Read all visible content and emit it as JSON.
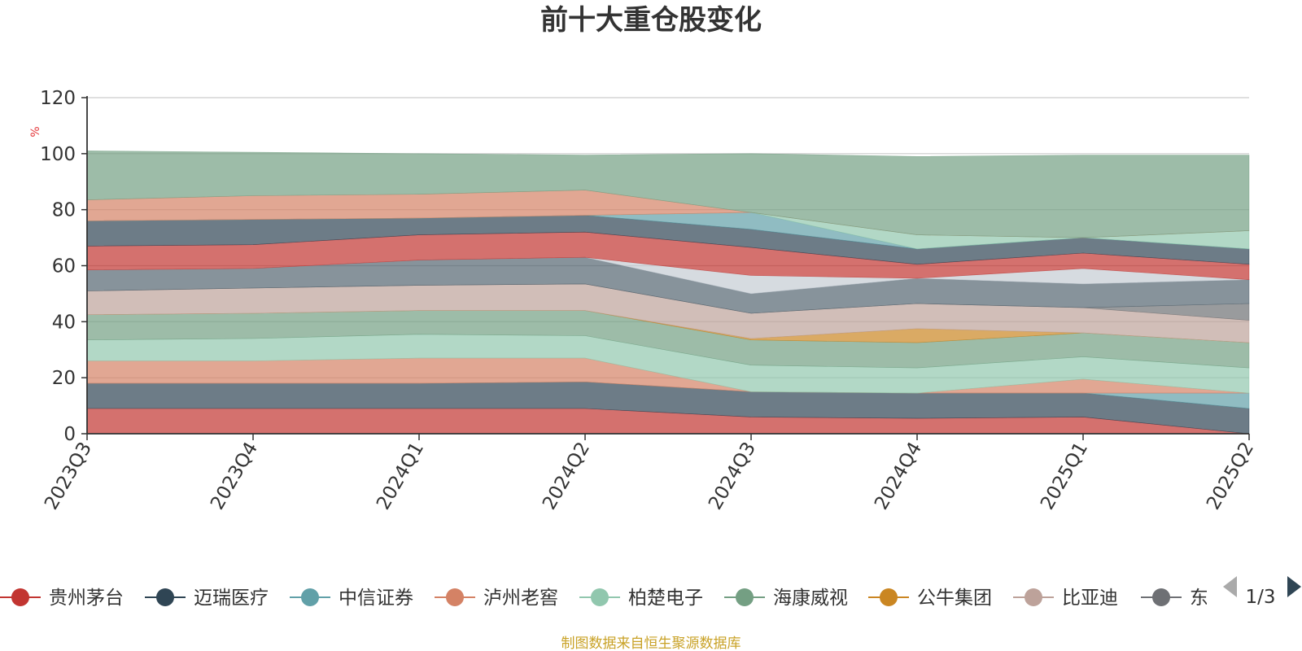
{
  "chart_data": {
    "type": "area",
    "title": "前十大重仓股变化",
    "ylabel": "%",
    "ylim": [
      0,
      120
    ],
    "yticks": [
      0,
      20,
      40,
      60,
      80,
      100,
      120
    ],
    "categories": [
      "2023Q3",
      "2023Q4",
      "2024Q1",
      "2024Q2",
      "2024Q3",
      "2024Q4",
      "2025Q1",
      "2025Q2"
    ],
    "stacked": true,
    "grid": true,
    "series": [
      {
        "name": "贵州茅台",
        "color": "#c23531",
        "values": [
          9,
          9,
          9,
          9,
          6,
          5.5,
          6,
          0
        ]
      },
      {
        "name": "迈瑞医疗",
        "color": "#2f4554",
        "values": [
          9,
          9,
          9,
          9.5,
          9,
          9,
          8.5,
          9
        ]
      },
      {
        "name": "中信证券",
        "color": "#61a0a8",
        "values": [
          0,
          0,
          0,
          0,
          0,
          0,
          0,
          5.5
        ]
      },
      {
        "name": "泸州老窖",
        "color": "#d48265",
        "values": [
          8,
          8,
          9,
          8.5,
          0,
          0,
          5,
          0
        ]
      },
      {
        "name": "柏楚电子",
        "color": "#91c7ae",
        "values": [
          7.5,
          8,
          8.5,
          8,
          9.5,
          9,
          8,
          9
        ]
      },
      {
        "name": "海康威视",
        "color": "#749f83",
        "values": [
          9,
          9,
          8.5,
          9,
          9,
          9,
          8.5,
          9
        ]
      },
      {
        "name": "公牛集团",
        "color": "#ca8622",
        "values": [
          0,
          0,
          0,
          0,
          0.5,
          5,
          0,
          0
        ]
      },
      {
        "name": "比亚迪",
        "color": "#bda29a",
        "values": [
          8.5,
          9,
          9,
          9.5,
          9,
          9,
          9,
          8
        ]
      },
      {
        "name": "东方财富",
        "color": "#6e7074",
        "values": [
          0,
          0,
          0,
          0,
          0,
          0,
          0,
          6
        ]
      },
      {
        "name": "",
        "color": "#546570",
        "values": [
          7.5,
          7,
          9,
          9.5,
          7,
          9,
          8.5,
          8.5
        ]
      },
      {
        "name": "",
        "color": "#c4ccd3",
        "values": [
          0,
          0,
          0,
          0,
          6.5,
          0,
          5.5,
          0
        ]
      },
      {
        "name": "",
        "color": "#c23531",
        "values": [
          8.5,
          8.5,
          9,
          9,
          10,
          5,
          5.5,
          5.5
        ]
      },
      {
        "name": "",
        "color": "#2f4554",
        "values": [
          9,
          9,
          6,
          6,
          6.5,
          5.5,
          5.5,
          5.5
        ]
      },
      {
        "name": "",
        "color": "#61a0a8",
        "values": [
          0,
          0,
          0,
          0,
          6,
          0,
          0,
          0
        ]
      },
      {
        "name": "",
        "color": "#91c7ae",
        "values": [
          0,
          0,
          0,
          0,
          0,
          5,
          0,
          6.5
        ]
      },
      {
        "name": "",
        "color": "#d48265",
        "values": [
          7.5,
          8.5,
          8.5,
          9,
          0,
          0,
          0,
          0
        ]
      },
      {
        "name": "",
        "color": "#749f83",
        "values": [
          17.5,
          15.5,
          14.5,
          12.5,
          21,
          28,
          29.5,
          27
        ]
      }
    ]
  },
  "legend": {
    "items": [
      {
        "label": "贵州茅台",
        "color": "#c23531"
      },
      {
        "label": "迈瑞医疗",
        "color": "#2f4554"
      },
      {
        "label": "中信证券",
        "color": "#61a0a8"
      },
      {
        "label": "泸州老窖",
        "color": "#d48265"
      },
      {
        "label": "柏楚电子",
        "color": "#91c7ae"
      },
      {
        "label": "海康威视",
        "color": "#749f83"
      },
      {
        "label": "公牛集团",
        "color": "#ca8622"
      },
      {
        "label": "比亚迪",
        "color": "#bda29a"
      },
      {
        "label": "东方财富",
        "color": "#6e7074"
      }
    ],
    "page_indicator": "1/3"
  },
  "source_text": "制图数据来自恒生聚源数据库",
  "colors": {
    "title": "#333333",
    "ylabel": "#e4393c",
    "source": "#c9a227",
    "gridline": "#cccccc",
    "axis": "#333333",
    "pager_active": "#2f4554",
    "pager_inactive": "#aaaaaa"
  }
}
